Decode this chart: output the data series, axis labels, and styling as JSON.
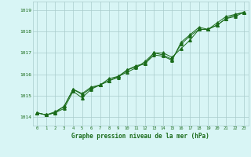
{
  "hours": [
    0,
    1,
    2,
    3,
    4,
    5,
    6,
    7,
    8,
    9,
    10,
    11,
    12,
    13,
    14,
    15,
    16,
    17,
    18,
    19,
    20,
    21,
    22,
    23
  ],
  "series1": [
    1014.2,
    1014.1,
    1014.2,
    1014.4,
    1015.2,
    1014.9,
    1015.3,
    1015.5,
    1015.8,
    1015.9,
    1016.1,
    1016.3,
    1016.6,
    1017.0,
    1017.0,
    1016.8,
    1017.2,
    1017.6,
    1018.1,
    1018.1,
    1018.4,
    1018.7,
    1018.8,
    1018.9
  ],
  "series2": [
    1014.2,
    1014.1,
    1014.25,
    1014.5,
    1015.3,
    1015.05,
    1015.35,
    1015.5,
    1015.7,
    1015.85,
    1016.2,
    1016.35,
    1016.5,
    1016.9,
    1016.85,
    1016.65,
    1017.5,
    1017.85,
    1018.2,
    1018.1,
    1018.3,
    1018.6,
    1018.78,
    1018.9
  ],
  "series3": [
    1014.2,
    1014.1,
    1014.2,
    1014.5,
    1015.3,
    1015.1,
    1015.4,
    1015.5,
    1015.7,
    1015.9,
    1016.2,
    1016.4,
    1016.5,
    1017.0,
    1016.9,
    1016.7,
    1017.4,
    1017.8,
    1018.1,
    1018.1,
    1018.3,
    1018.6,
    1018.7,
    1018.9
  ],
  "line_color": "#1a6b1a",
  "bg_color": "#d8f5f5",
  "grid_color": "#aacccc",
  "xlabel": "Graphe pression niveau de la mer (hPa)",
  "xlabel_color": "#1a6b1a",
  "yticks": [
    1014,
    1015,
    1016,
    1017,
    1018,
    1019
  ],
  "ylim": [
    1013.6,
    1019.4
  ],
  "xlim": [
    -0.5,
    23.5
  ],
  "marker_size": 2.5,
  "linewidth": 0.7
}
